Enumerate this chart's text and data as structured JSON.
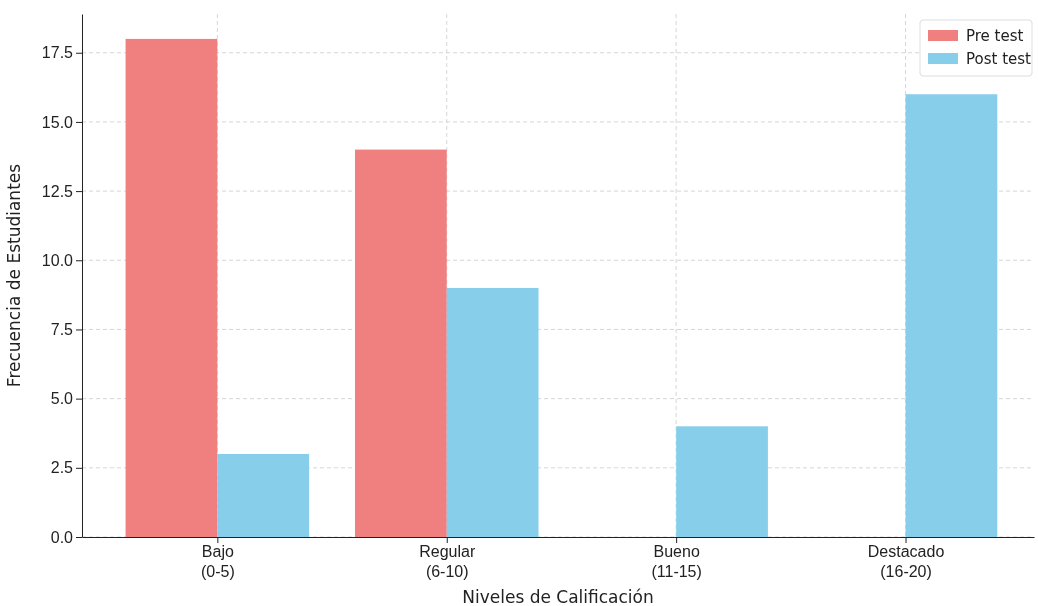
{
  "chart_data": {
    "type": "bar",
    "xlabel": "Niveles de Calificación",
    "ylabel": "Frecuencia de Estudiantes",
    "categories": [
      "Bajo\n(0-5)",
      "Regular\n(6-10)",
      "Bueno\n(11-15)",
      "Destacado\n(16-20)"
    ],
    "series": [
      {
        "name": "Pre test",
        "color": "#f08080",
        "values": [
          18,
          14,
          0,
          0
        ]
      },
      {
        "name": "Post test",
        "color": "#87ceeb",
        "values": [
          3,
          9,
          4,
          16
        ]
      }
    ],
    "ylim": [
      0,
      18.9
    ],
    "yticks": [
      {
        "value": 0,
        "label": "0.0"
      },
      {
        "value": 2.5,
        "label": "2.5"
      },
      {
        "value": 5,
        "label": "5.0"
      },
      {
        "value": 7.5,
        "label": "7.5"
      },
      {
        "value": 10,
        "label": "10.0"
      },
      {
        "value": 12.5,
        "label": "12.5"
      },
      {
        "value": 15,
        "label": "15.0"
      },
      {
        "value": 17.5,
        "label": "17.5"
      }
    ],
    "grid": true,
    "legend": "top right"
  }
}
